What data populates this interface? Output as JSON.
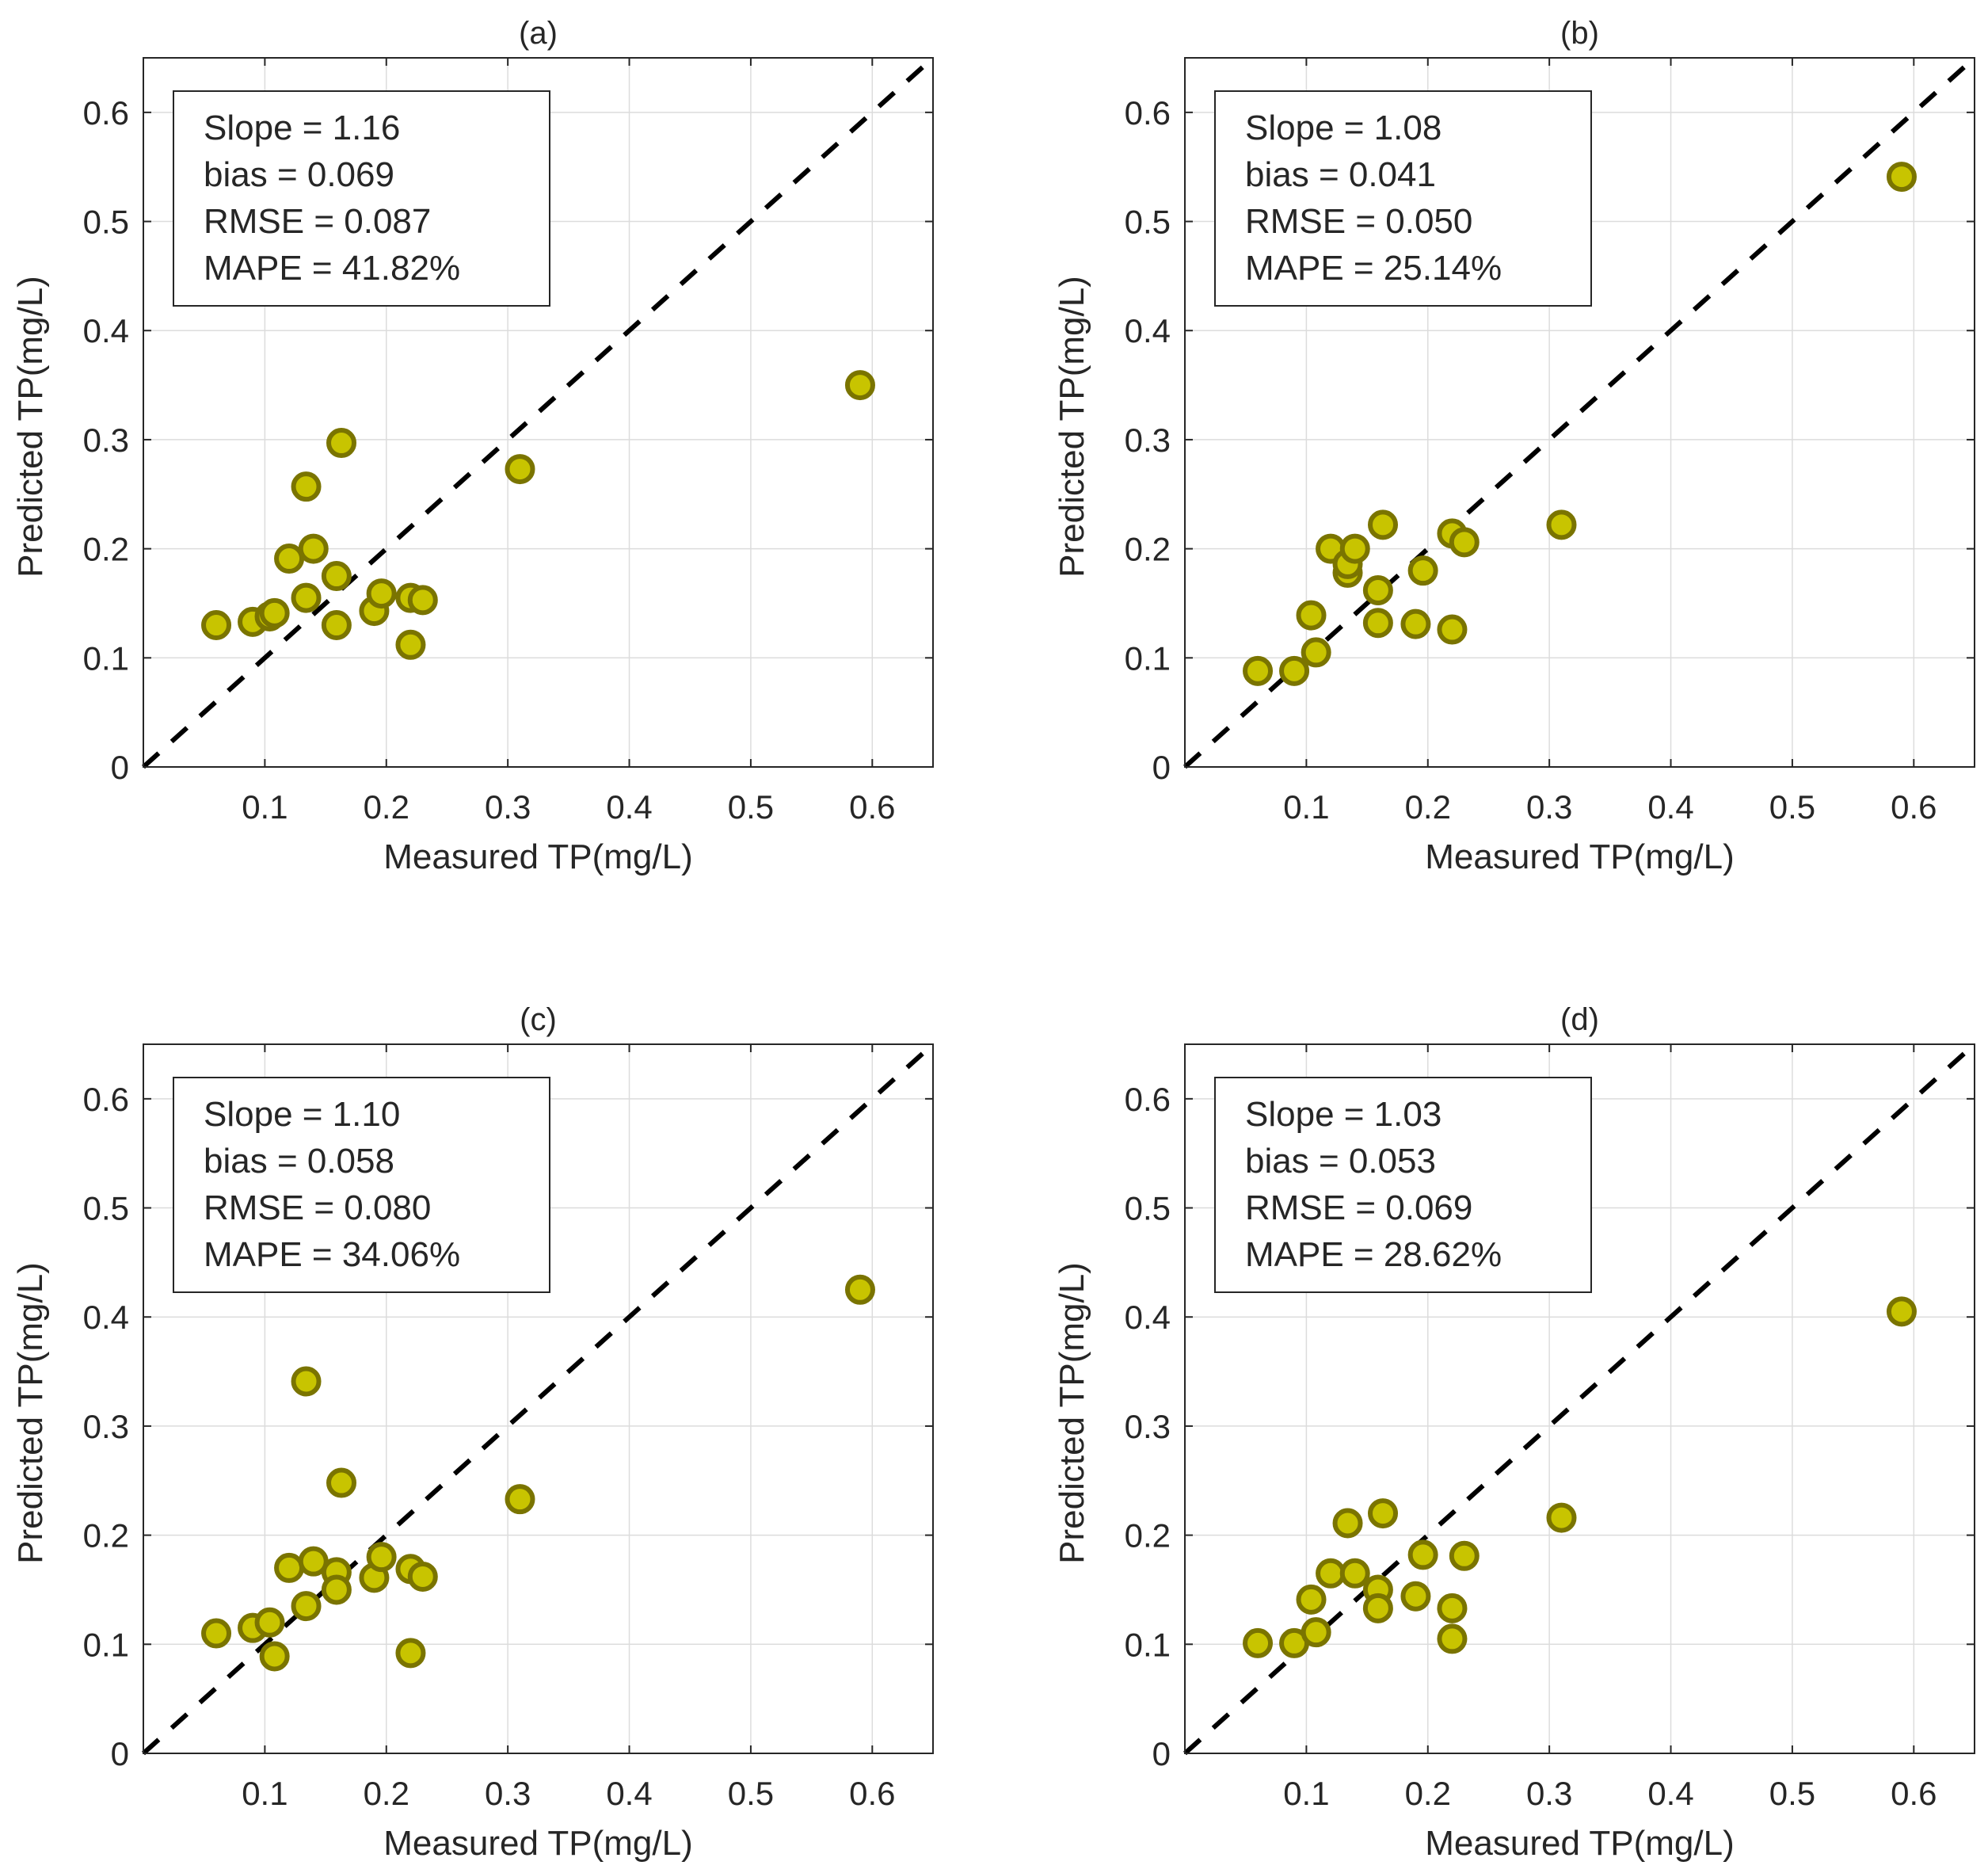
{
  "colors": {
    "marker_fill": "#c8c400",
    "marker_edge": "#7a7400",
    "ref_line": "#000000"
  },
  "chart_data": [
    {
      "type": "scatter",
      "title": "(a)",
      "xlabel": "Measured TP(mg/L)",
      "ylabel": "Predicted TP(mg/L)",
      "xlim": [
        0,
        0.65
      ],
      "ylim": [
        0,
        0.65
      ],
      "xticks": [
        "0.1",
        "0.2",
        "0.3",
        "0.4",
        "0.5",
        "0.6"
      ],
      "yticks": [
        "0",
        "0.1",
        "0.2",
        "0.3",
        "0.4",
        "0.5",
        "0.6"
      ],
      "grid": true,
      "reference_line": "1:1",
      "stats": [
        "Slope = 1.16",
        "bias = 0.069",
        "RMSE = 0.087",
        "MAPE = 41.82%"
      ],
      "points": [
        {
          "x": 0.06,
          "y": 0.13
        },
        {
          "x": 0.09,
          "y": 0.133
        },
        {
          "x": 0.104,
          "y": 0.138
        },
        {
          "x": 0.108,
          "y": 0.141
        },
        {
          "x": 0.12,
          "y": 0.191
        },
        {
          "x": 0.134,
          "y": 0.257
        },
        {
          "x": 0.134,
          "y": 0.155
        },
        {
          "x": 0.14,
          "y": 0.2
        },
        {
          "x": 0.159,
          "y": 0.175
        },
        {
          "x": 0.159,
          "y": 0.13
        },
        {
          "x": 0.163,
          "y": 0.297
        },
        {
          "x": 0.19,
          "y": 0.143
        },
        {
          "x": 0.196,
          "y": 0.159
        },
        {
          "x": 0.22,
          "y": 0.155
        },
        {
          "x": 0.22,
          "y": 0.112
        },
        {
          "x": 0.23,
          "y": 0.153
        },
        {
          "x": 0.31,
          "y": 0.273
        },
        {
          "x": 0.59,
          "y": 0.35
        }
      ]
    },
    {
      "type": "scatter",
      "title": "(b)",
      "xlabel": "Measured TP(mg/L)",
      "ylabel": "Predicted TP(mg/L)",
      "xlim": [
        0,
        0.65
      ],
      "ylim": [
        0,
        0.65
      ],
      "xticks": [
        "0.1",
        "0.2",
        "0.3",
        "0.4",
        "0.5",
        "0.6"
      ],
      "yticks": [
        "0",
        "0.1",
        "0.2",
        "0.3",
        "0.4",
        "0.5",
        "0.6"
      ],
      "grid": true,
      "reference_line": "1:1",
      "stats": [
        "Slope = 1.08",
        "bias = 0.041",
        "RMSE = 0.050",
        "MAPE = 25.14%"
      ],
      "points": [
        {
          "x": 0.06,
          "y": 0.088
        },
        {
          "x": 0.09,
          "y": 0.088
        },
        {
          "x": 0.104,
          "y": 0.139
        },
        {
          "x": 0.108,
          "y": 0.105
        },
        {
          "x": 0.12,
          "y": 0.2
        },
        {
          "x": 0.134,
          "y": 0.178
        },
        {
          "x": 0.134,
          "y": 0.186
        },
        {
          "x": 0.14,
          "y": 0.2
        },
        {
          "x": 0.159,
          "y": 0.162
        },
        {
          "x": 0.159,
          "y": 0.132
        },
        {
          "x": 0.163,
          "y": 0.222
        },
        {
          "x": 0.19,
          "y": 0.131
        },
        {
          "x": 0.196,
          "y": 0.18
        },
        {
          "x": 0.22,
          "y": 0.214
        },
        {
          "x": 0.22,
          "y": 0.126
        },
        {
          "x": 0.23,
          "y": 0.206
        },
        {
          "x": 0.31,
          "y": 0.222
        },
        {
          "x": 0.59,
          "y": 0.541
        }
      ]
    },
    {
      "type": "scatter",
      "title": "(c)",
      "xlabel": "Measured TP(mg/L)",
      "ylabel": "Predicted TP(mg/L)",
      "xlim": [
        0,
        0.65
      ],
      "ylim": [
        0,
        0.65
      ],
      "xticks": [
        "0.1",
        "0.2",
        "0.3",
        "0.4",
        "0.5",
        "0.6"
      ],
      "yticks": [
        "0",
        "0.1",
        "0.2",
        "0.3",
        "0.4",
        "0.5",
        "0.6"
      ],
      "grid": true,
      "reference_line": "1:1",
      "stats": [
        "Slope = 1.10",
        "bias = 0.058",
        "RMSE = 0.080",
        "MAPE = 34.06%"
      ],
      "points": [
        {
          "x": 0.06,
          "y": 0.11
        },
        {
          "x": 0.09,
          "y": 0.115
        },
        {
          "x": 0.104,
          "y": 0.12
        },
        {
          "x": 0.108,
          "y": 0.089
        },
        {
          "x": 0.12,
          "y": 0.17
        },
        {
          "x": 0.134,
          "y": 0.341
        },
        {
          "x": 0.134,
          "y": 0.135
        },
        {
          "x": 0.14,
          "y": 0.176
        },
        {
          "x": 0.159,
          "y": 0.166
        },
        {
          "x": 0.159,
          "y": 0.15
        },
        {
          "x": 0.163,
          "y": 0.248
        },
        {
          "x": 0.19,
          "y": 0.161
        },
        {
          "x": 0.196,
          "y": 0.18
        },
        {
          "x": 0.22,
          "y": 0.169
        },
        {
          "x": 0.22,
          "y": 0.092
        },
        {
          "x": 0.23,
          "y": 0.162
        },
        {
          "x": 0.31,
          "y": 0.233
        },
        {
          "x": 0.59,
          "y": 0.425
        }
      ]
    },
    {
      "type": "scatter",
      "title": "(d)",
      "xlabel": "Measured TP(mg/L)",
      "ylabel": "Predicted TP(mg/L)",
      "xlim": [
        0,
        0.65
      ],
      "ylim": [
        0,
        0.65
      ],
      "xticks": [
        "0.1",
        "0.2",
        "0.3",
        "0.4",
        "0.5",
        "0.6"
      ],
      "yticks": [
        "0",
        "0.1",
        "0.2",
        "0.3",
        "0.4",
        "0.5",
        "0.6"
      ],
      "grid": true,
      "reference_line": "1:1",
      "stats": [
        "Slope = 1.03",
        "bias = 0.053",
        "RMSE = 0.069",
        "MAPE = 28.62%"
      ],
      "points": [
        {
          "x": 0.06,
          "y": 0.101
        },
        {
          "x": 0.09,
          "y": 0.101
        },
        {
          "x": 0.104,
          "y": 0.141
        },
        {
          "x": 0.108,
          "y": 0.111
        },
        {
          "x": 0.12,
          "y": 0.165
        },
        {
          "x": 0.134,
          "y": 0.211
        },
        {
          "x": 0.14,
          "y": 0.165
        },
        {
          "x": 0.159,
          "y": 0.15
        },
        {
          "x": 0.159,
          "y": 0.133
        },
        {
          "x": 0.163,
          "y": 0.22
        },
        {
          "x": 0.19,
          "y": 0.144
        },
        {
          "x": 0.196,
          "y": 0.182
        },
        {
          "x": 0.22,
          "y": 0.133
        },
        {
          "x": 0.22,
          "y": 0.105
        },
        {
          "x": 0.23,
          "y": 0.181
        },
        {
          "x": 0.31,
          "y": 0.216
        },
        {
          "x": 0.59,
          "y": 0.405
        }
      ]
    }
  ]
}
